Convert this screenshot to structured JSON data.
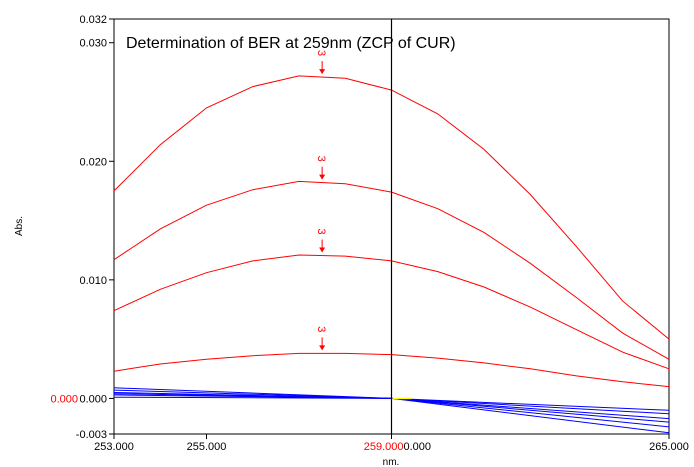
{
  "chart_data": {
    "type": "line",
    "title": "Determination of BER at 259nm (ZCP of CUR)",
    "xlabel": "nm.",
    "ylabel": "Abs.",
    "xlim": [
      253.0,
      265.0
    ],
    "ylim": [
      -0.003,
      0.032
    ],
    "x_ticks": [
      {
        "value": 253.0,
        "label": "253.000"
      },
      {
        "value": 255.0,
        "label": "255.000"
      },
      {
        "value": 265.0,
        "label": "265.000"
      }
    ],
    "cursor": {
      "x": 259.0,
      "x_label": "259.000",
      "y_label": "0.000",
      "y_value": 0.0
    },
    "y_ticks": [
      {
        "value": -0.003,
        "label": "-0.003"
      },
      {
        "value": 0.0,
        "label": "0.000"
      },
      {
        "value": 0.01,
        "label": "0.010"
      },
      {
        "value": 0.02,
        "label": "0.020"
      },
      {
        "value": 0.03,
        "label": "0.030"
      },
      {
        "value": 0.032,
        "label": "0.032"
      }
    ],
    "colors": {
      "ber": "#ff0000",
      "cur": "#0000ff",
      "cursor": "#000000",
      "zero_mark": "#ffff00"
    },
    "marker": {
      "label": "3",
      "x": 257.5
    },
    "series": [
      {
        "color": "#ff0000",
        "x": [
          253,
          254,
          255,
          256,
          257,
          258,
          259,
          260,
          261,
          262,
          263,
          264,
          265
        ],
        "y": [
          0.0175,
          0.0214,
          0.0245,
          0.0263,
          0.0272,
          0.027,
          0.026,
          0.024,
          0.021,
          0.0172,
          0.0128,
          0.0082,
          0.005
        ]
      },
      {
        "color": "#ff0000",
        "x": [
          253,
          254,
          255,
          256,
          257,
          258,
          259,
          260,
          261,
          262,
          263,
          264,
          265
        ],
        "y": [
          0.0117,
          0.0143,
          0.0163,
          0.0176,
          0.0183,
          0.0181,
          0.0174,
          0.016,
          0.014,
          0.0114,
          0.0085,
          0.0055,
          0.0033
        ]
      },
      {
        "color": "#ff0000",
        "x": [
          253,
          254,
          255,
          256,
          257,
          258,
          259,
          260,
          261,
          262,
          263,
          264,
          265
        ],
        "y": [
          0.0074,
          0.0092,
          0.0106,
          0.0116,
          0.0121,
          0.012,
          0.0116,
          0.0107,
          0.0094,
          0.0077,
          0.0058,
          0.0039,
          0.0025
        ]
      },
      {
        "color": "#ff0000",
        "x": [
          253,
          254,
          255,
          256,
          257,
          258,
          259,
          260,
          261,
          262,
          263,
          264,
          265
        ],
        "y": [
          0.0023,
          0.0029,
          0.0033,
          0.0036,
          0.0038,
          0.0038,
          0.0037,
          0.0034,
          0.003,
          0.0025,
          0.0019,
          0.0014,
          0.001
        ]
      },
      {
        "color": "#0000ff",
        "x": [
          253,
          259,
          265
        ],
        "y": [
          0.0009,
          0.0,
          -0.001
        ]
      },
      {
        "color": "#0000ff",
        "x": [
          253,
          259,
          265
        ],
        "y": [
          0.0007,
          0.0,
          -0.0013
        ]
      },
      {
        "color": "#0000ff",
        "x": [
          253,
          259,
          265
        ],
        "y": [
          0.0005,
          0.0,
          -0.0017
        ]
      },
      {
        "color": "#0000ff",
        "x": [
          253,
          259,
          265
        ],
        "y": [
          0.0004,
          0.0,
          -0.002
        ]
      },
      {
        "color": "#0000ff",
        "x": [
          253,
          259,
          265
        ],
        "y": [
          0.0003,
          0.0,
          -0.0024
        ]
      },
      {
        "color": "#0000ff",
        "x": [
          253,
          259,
          265
        ],
        "y": [
          0.0001,
          0.0,
          -0.0029
        ]
      }
    ]
  }
}
